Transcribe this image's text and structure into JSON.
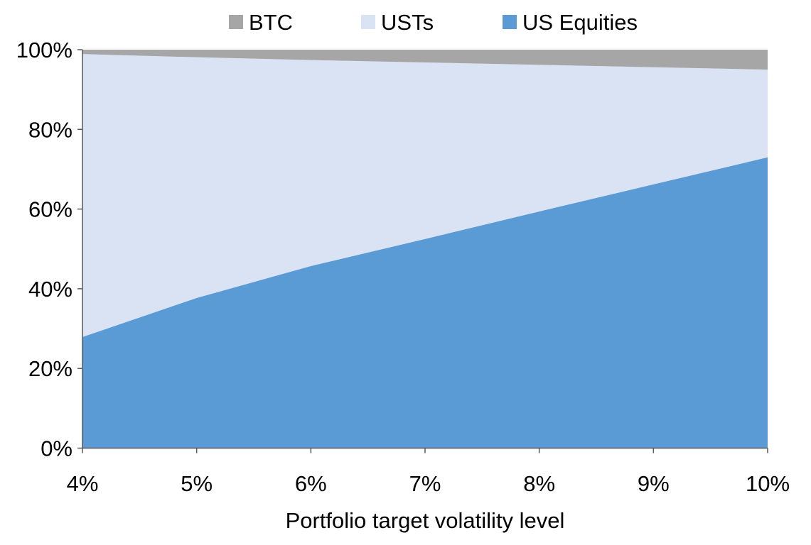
{
  "chart_data": {
    "type": "area",
    "stacked": true,
    "title": "",
    "xlabel": "Portfolio target volatility level",
    "ylabel": "",
    "categories": [
      "4%",
      "5%",
      "6%",
      "7%",
      "8%",
      "9%",
      "10%"
    ],
    "x": [
      4,
      5,
      6,
      7,
      8,
      9,
      10
    ],
    "ylim": [
      0,
      100
    ],
    "yticks": [
      "0%",
      "20%",
      "40%",
      "60%",
      "80%",
      "100%"
    ],
    "grid": false,
    "legend_position": "top",
    "series": [
      {
        "name": "US Equities",
        "color": "#5b9bd5",
        "values": [
          27.9,
          37.7,
          45.7,
          52.5,
          59.4,
          66.2,
          73.0
        ]
      },
      {
        "name": "USTs",
        "color": "#dae3f3",
        "values": [
          71.0,
          60.4,
          51.7,
          44.3,
          36.8,
          29.4,
          22.0
        ]
      },
      {
        "name": "BTC",
        "color": "#a6a6a6",
        "values": [
          1.1,
          1.9,
          2.6,
          3.2,
          3.8,
          4.4,
          5.0
        ]
      }
    ],
    "legend_order": [
      "BTC",
      "USTs",
      "US Equities"
    ]
  }
}
